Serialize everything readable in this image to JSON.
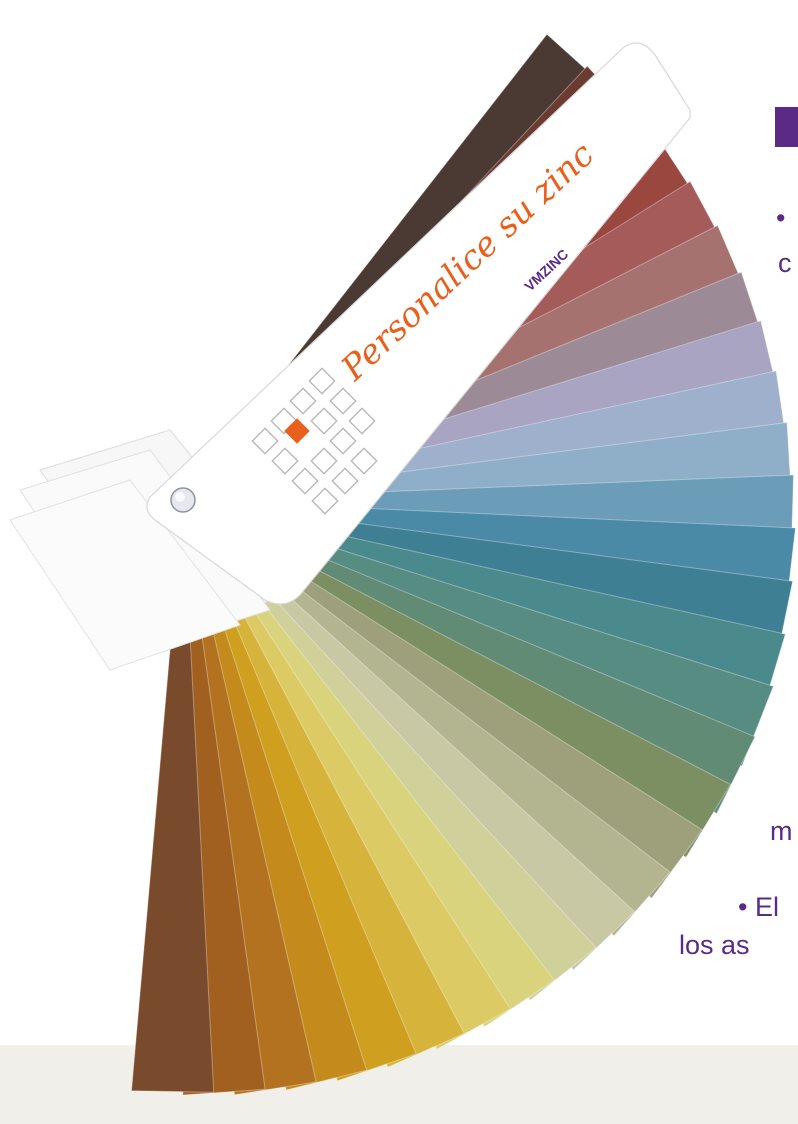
{
  "card": {
    "title": "Personalice su zinc",
    "brand": "VMZINC",
    "brand_accent": "#e8601c",
    "brand_main": "#5b2a86",
    "title_color": "#e8601c"
  },
  "text_fragments": {
    "line1": "•",
    "line2": "c",
    "line3": "m",
    "line4": "• El",
    "line5": "los as"
  },
  "colors": {
    "accent_purple": "#5b2a86",
    "footer_band": "#f1efea"
  },
  "swatches": [
    "#4a3a33",
    "#6b3b32",
    "#7e3a33",
    "#9a4740",
    "#a45b5a",
    "#a6726f",
    "#9c8a96",
    "#a9a4c2",
    "#9eb0cc",
    "#8fafc8",
    "#6b9cb8",
    "#4a8aa6",
    "#3e7f94",
    "#4b8a8c",
    "#578c82",
    "#628b76",
    "#7c8f63",
    "#9da07a",
    "#b3b591",
    "#c8c8a4",
    "#cfd09a",
    "#d8d37c",
    "#dccb65",
    "#d6b33a",
    "#cf9f1f",
    "#c48a1c",
    "#b3721f",
    "#a1601f",
    "#7a4a2c"
  ]
}
